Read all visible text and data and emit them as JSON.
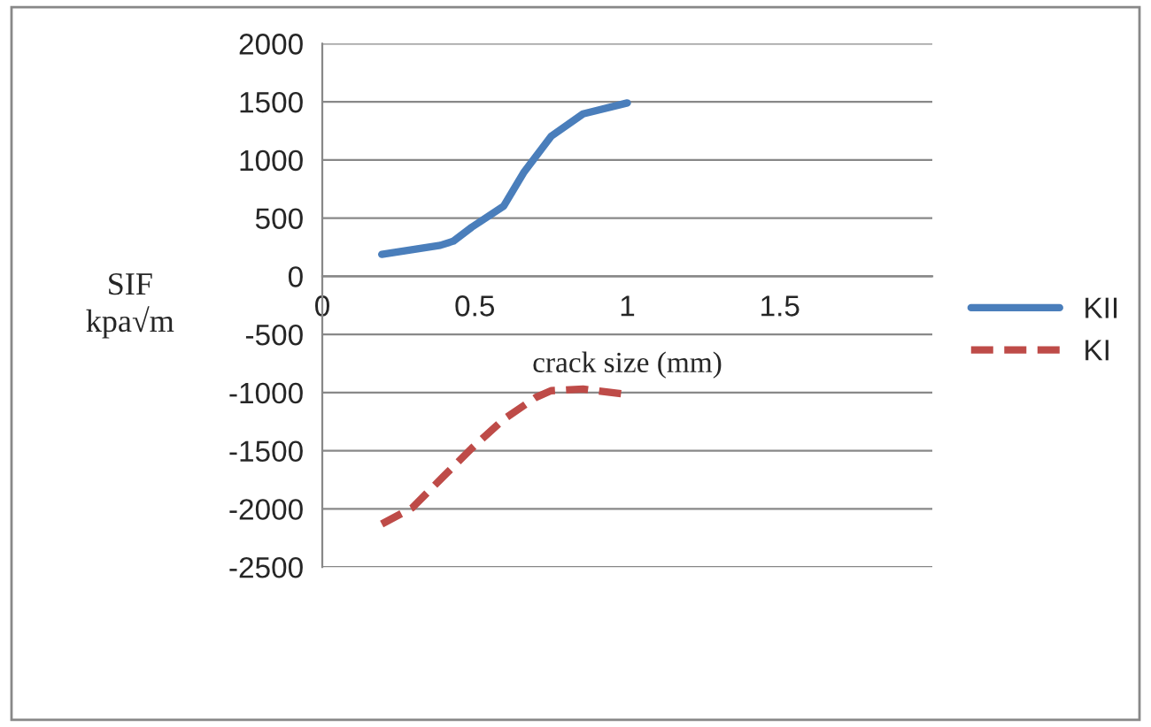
{
  "chart_data": {
    "type": "line",
    "xlabel": "crack size (mm)",
    "ylabel": "SIF\nkpa√m",
    "series": [
      {
        "name": "KII",
        "color": "#4a7ebb",
        "line_style": "solid",
        "x": [
          0.195,
          0.387,
          0.43,
          0.49,
          0.595,
          0.66,
          0.75,
          0.855,
          1.0
        ],
        "values": [
          188,
          266,
          302,
          422,
          604,
          890,
          1203,
          1396,
          1490
        ]
      },
      {
        "name": "KI",
        "color": "#be4b48",
        "line_style": "dashed",
        "x": [
          0.195,
          0.295,
          0.4,
          0.49,
          0.595,
          0.7,
          0.75,
          0.855,
          0.98
        ],
        "values": [
          -2130,
          -1990,
          -1714,
          -1479,
          -1229,
          -1042,
          -984,
          -969,
          -1010
        ]
      }
    ],
    "xlim": [
      0,
      2
    ],
    "xticks": [
      0,
      0.5,
      1,
      1.5
    ],
    "ylim": [
      -2500,
      2000
    ],
    "yticks": [
      -2500,
      -2000,
      -1500,
      -1000,
      -500,
      0,
      500,
      1000,
      1500,
      2000
    ],
    "grid": "y",
    "legend": "right"
  }
}
